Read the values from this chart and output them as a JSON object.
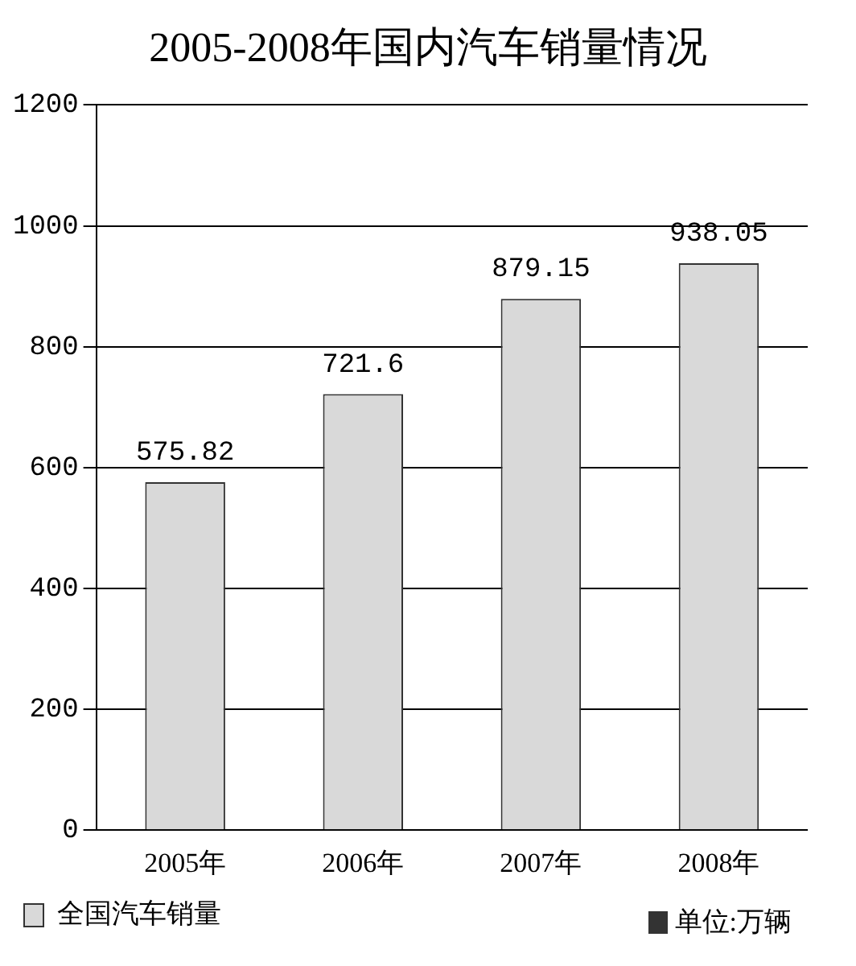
{
  "chart_data": {
    "type": "bar",
    "title": "2005-2008年国内汽车销量情况",
    "categories": [
      "2005年",
      "2006年",
      "2007年",
      "2008年"
    ],
    "series": [
      {
        "name": "全国汽车销量",
        "color": "#d9d9d9",
        "values": [
          575.82,
          721.6,
          879.15,
          938.05
        ]
      }
    ],
    "ylim": [
      0,
      1200
    ],
    "yticks": [
      0,
      200,
      400,
      600,
      800,
      1000,
      1200
    ],
    "grid": "y",
    "legend": "bottom left",
    "data_labels": true,
    "annotations": [
      "单位:万辆"
    ]
  }
}
